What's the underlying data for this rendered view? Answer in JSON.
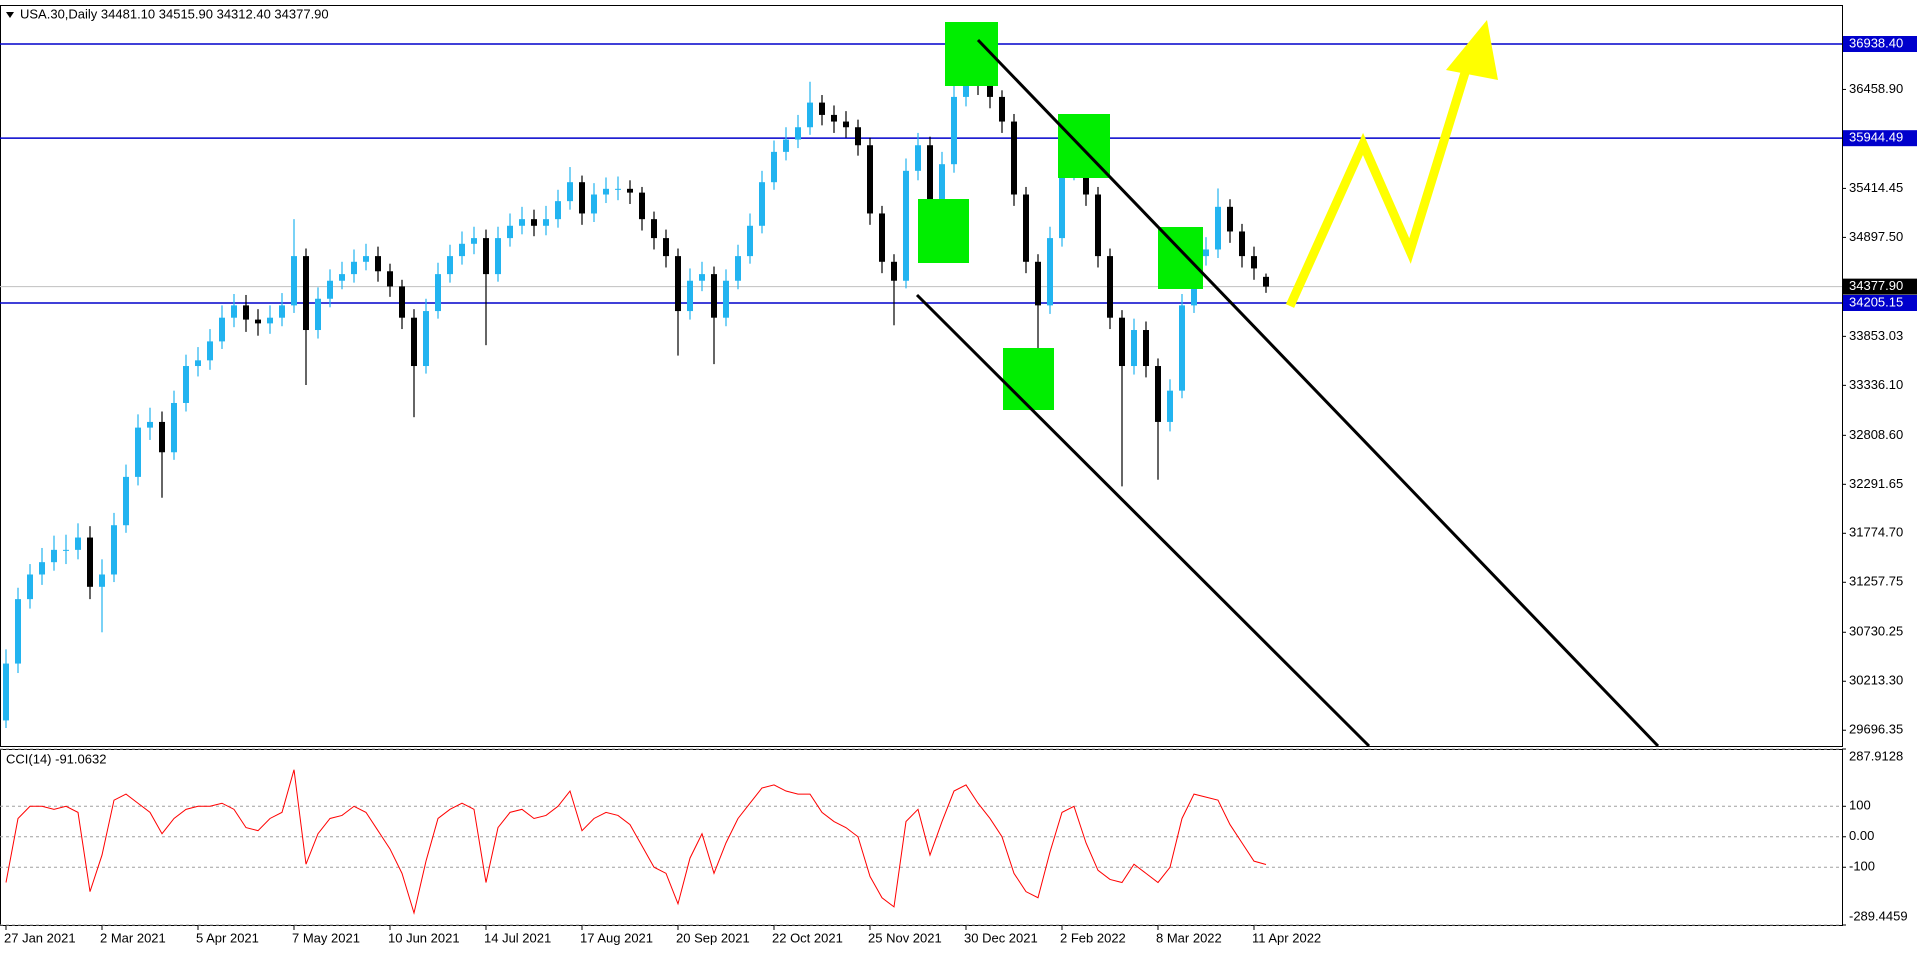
{
  "chart_data": [
    {
      "type": "candlestick",
      "title": "USA.30,Daily 34481.10 34515.90 34312.40 34377.90",
      "categories": [
        "27 Jan 2021",
        null,
        null,
        null,
        null,
        null,
        null,
        null,
        "2 Mar 2021",
        null,
        null,
        null,
        null,
        null,
        null,
        null,
        "5 Apr 2021",
        null,
        null,
        null,
        null,
        null,
        null,
        null,
        "7 May 2021",
        null,
        null,
        null,
        null,
        null,
        null,
        null,
        "10 Jun 2021",
        null,
        null,
        null,
        null,
        null,
        null,
        null,
        "14 Jul 2021",
        null,
        null,
        null,
        null,
        null,
        null,
        null,
        "17 Aug 2021",
        null,
        null,
        null,
        null,
        null,
        null,
        null,
        "20 Sep 2021",
        null,
        null,
        null,
        null,
        null,
        null,
        null,
        "22 Oct 2021",
        null,
        null,
        null,
        null,
        null,
        null,
        null,
        "25 Nov 2021",
        null,
        null,
        null,
        null,
        null,
        null,
        null,
        "30 Dec 2021",
        null,
        null,
        null,
        null,
        null,
        null,
        null,
        "2 Feb 2022",
        null,
        null,
        null,
        null,
        null,
        null,
        null,
        "8 Mar 2022",
        null,
        null,
        null,
        null,
        null,
        null,
        null,
        "11 Apr 2022",
        null
      ],
      "open": [
        29800,
        30400,
        31080,
        31340,
        31470,
        31600,
        31600,
        31730,
        31210,
        31340,
        31860,
        32370,
        32890,
        32950,
        32630,
        33150,
        33540,
        33600,
        33800,
        34050,
        34180,
        34030,
        33990,
        34050,
        34180,
        34700,
        33920,
        34250,
        34440,
        34510,
        34640,
        34700,
        34540,
        34380,
        34050,
        33540,
        34120,
        34510,
        34700,
        34830,
        34890,
        34510,
        34890,
        35020,
        35090,
        35020,
        35090,
        35280,
        35480,
        35150,
        35350,
        35410,
        35410,
        35370,
        35090,
        34890,
        34700,
        34120,
        34440,
        34510,
        34050,
        34440,
        34700,
        35020,
        35480,
        35800,
        35930,
        36060,
        36320,
        36190,
        36120,
        36060,
        35870,
        35150,
        34640,
        34440,
        35600,
        35870,
        35150,
        35670,
        36380,
        36640,
        36510,
        36380,
        36120,
        35350,
        34640,
        34180,
        34890,
        35600,
        35870,
        35350,
        34700,
        34050,
        33540,
        33920,
        33540,
        32950,
        33280,
        34180,
        34700,
        34770,
        35220,
        34960,
        34700,
        34481.1
      ],
      "high": [
        30550,
        31200,
        31450,
        31620,
        31750,
        31760,
        31880,
        31850,
        31500,
        31990,
        32500,
        33030,
        33100,
        33060,
        33280,
        33660,
        33740,
        33930,
        34180,
        34300,
        34290,
        34140,
        34180,
        34310,
        35090,
        34780,
        34370,
        34560,
        34640,
        34770,
        34830,
        34800,
        34620,
        34450,
        34140,
        34250,
        34630,
        34820,
        34960,
        35010,
        34980,
        35010,
        35150,
        35220,
        35190,
        35230,
        35400,
        35640,
        35550,
        35470,
        35530,
        35540,
        35500,
        35430,
        35170,
        34980,
        34780,
        34570,
        34640,
        34590,
        34560,
        34820,
        35150,
        35600,
        35920,
        36060,
        36190,
        36540,
        36400,
        36290,
        36230,
        36140,
        35950,
        35230,
        34720,
        35730,
        36000,
        35960,
        35800,
        36500,
        36950,
        36760,
        36600,
        36450,
        36200,
        35430,
        34720,
        35010,
        35730,
        36120,
        35950,
        35430,
        34780,
        34130,
        34040,
        34010,
        33620,
        33400,
        34300,
        34820,
        34900,
        35414,
        35300,
        35040,
        34800,
        34515.9
      ],
      "low": [
        29720,
        30300,
        30980,
        31230,
        31380,
        31450,
        31500,
        31080,
        30730,
        31260,
        31780,
        32280,
        32760,
        32150,
        32550,
        33060,
        33430,
        33500,
        33720,
        33950,
        33900,
        33860,
        33880,
        33960,
        34100,
        33340,
        33830,
        34160,
        34350,
        34420,
        34550,
        34430,
        34270,
        33930,
        33000,
        33460,
        34040,
        34420,
        34610,
        34720,
        33760,
        34430,
        34800,
        34930,
        34910,
        34920,
        35000,
        35190,
        35030,
        35060,
        35260,
        35290,
        35250,
        34970,
        34770,
        34580,
        33650,
        34030,
        34330,
        33560,
        33960,
        34350,
        34620,
        34940,
        35400,
        35710,
        35840,
        35980,
        36080,
        36000,
        35950,
        35760,
        35030,
        34520,
        33970,
        34360,
        35500,
        34700,
        35060,
        35580,
        36280,
        36400,
        36260,
        36000,
        35230,
        34520,
        33620,
        34090,
        34800,
        35500,
        35230,
        34580,
        33930,
        32270,
        33450,
        33420,
        32340,
        32850,
        33200,
        34100,
        34600,
        34680,
        34840,
        34580,
        34450,
        34312.4
      ],
      "close": [
        30400,
        31080,
        31340,
        31470,
        31600,
        31600,
        31730,
        31210,
        31340,
        31860,
        32370,
        32890,
        32950,
        32630,
        33150,
        33540,
        33600,
        33800,
        34050,
        34180,
        34030,
        33990,
        34050,
        34180,
        34700,
        33920,
        34250,
        34440,
        34510,
        34640,
        34700,
        34540,
        34380,
        34050,
        33540,
        34120,
        34510,
        34700,
        34830,
        34890,
        34510,
        34890,
        35020,
        35090,
        35020,
        35090,
        35280,
        35480,
        35150,
        35350,
        35410,
        35410,
        35370,
        35090,
        34890,
        34700,
        34120,
        34440,
        34510,
        34050,
        34440,
        34700,
        35020,
        35480,
        35800,
        35930,
        36060,
        36320,
        36190,
        36120,
        36060,
        35870,
        35150,
        34640,
        34440,
        35600,
        35870,
        35150,
        35670,
        36380,
        36640,
        36510,
        36380,
        36120,
        35350,
        34640,
        34180,
        34890,
        35600,
        35870,
        35350,
        34700,
        34050,
        33540,
        33920,
        33540,
        32950,
        33280,
        34180,
        34700,
        34770,
        35220,
        34960,
        34700,
        34570,
        34377.9
      ],
      "up_color": "#22b4f0",
      "down_color": "#000000",
      "ylim": [
        29530,
        37350
      ],
      "yticks": [
        {
          "value": 36458.9,
          "label": "36458.90"
        },
        {
          "value": 35414.45,
          "label": "35414.45"
        },
        {
          "value": 34897.5,
          "label": "34897.50"
        },
        {
          "value": 33853.03,
          "label": "33853.03"
        },
        {
          "value": 33336.1,
          "label": "33336.10"
        },
        {
          "value": 32808.6,
          "label": "32808.60"
        },
        {
          "value": 32291.65,
          "label": "32291.65"
        },
        {
          "value": 31774.7,
          "label": "31774.70"
        },
        {
          "value": 31257.75,
          "label": "31257.75"
        },
        {
          "value": 30730.25,
          "label": "30730.25"
        },
        {
          "value": 30213.3,
          "label": "30213.30"
        },
        {
          "value": 29696.35,
          "label": "29696.35"
        }
      ],
      "price_lines": [
        {
          "value": 36938.4,
          "label": "36938.40"
        },
        {
          "value": 35944.49,
          "label": "35944.49"
        },
        {
          "value": 34205.15,
          "label": "34205.15"
        }
      ],
      "price_line_color": "#0000cc",
      "current_price": {
        "value": 34377.9,
        "label": "34377.90"
      },
      "grid": false
    },
    {
      "type": "line",
      "title": "CCI(14) -91.0632",
      "color": "#ff0000",
      "values": [
        -150,
        60,
        100,
        100,
        90,
        100,
        80,
        -180,
        -60,
        120,
        140,
        110,
        80,
        10,
        60,
        90,
        100,
        100,
        110,
        90,
        30,
        20,
        60,
        80,
        220,
        -90,
        10,
        60,
        70,
        100,
        80,
        20,
        -40,
        -120,
        -250,
        -80,
        60,
        90,
        110,
        90,
        -150,
        30,
        80,
        90,
        60,
        70,
        100,
        150,
        20,
        60,
        80,
        70,
        40,
        -30,
        -100,
        -120,
        -220,
        -70,
        10,
        -120,
        -20,
        60,
        110,
        160,
        170,
        150,
        140,
        140,
        80,
        50,
        30,
        0,
        -130,
        -200,
        -230,
        50,
        90,
        -60,
        50,
        150,
        170,
        110,
        60,
        0,
        -120,
        -180,
        -200,
        -50,
        80,
        100,
        -20,
        -110,
        -140,
        -150,
        -90,
        -120,
        -150,
        -100,
        60,
        140,
        130,
        120,
        40,
        -20,
        -80,
        -91.0632
      ],
      "ylim": [
        -289.4459,
        287.9128
      ],
      "yticks": [
        {
          "value": 287.9128,
          "label": "287.9128"
        },
        100,
        {
          "value": 0,
          "label": "0.00"
        },
        -100,
        {
          "value": -289.4459,
          "label": "-289.4459"
        }
      ],
      "grid": true
    }
  ]
}
